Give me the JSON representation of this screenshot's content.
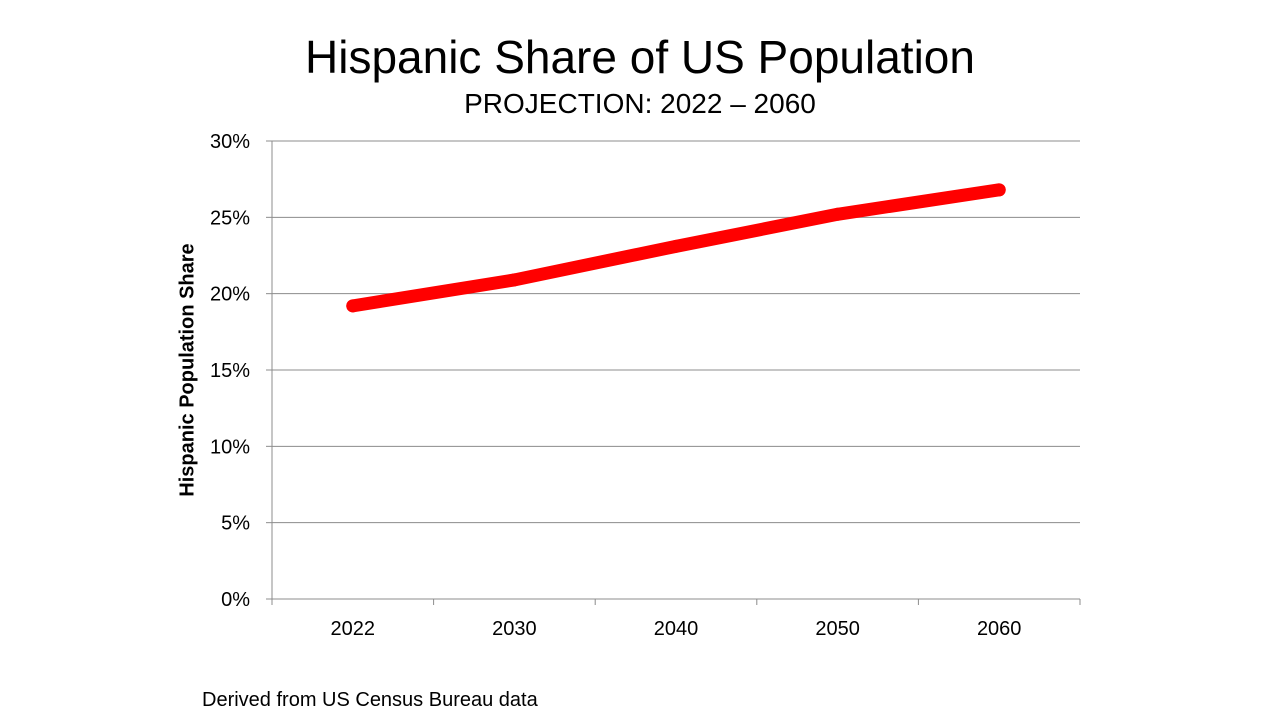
{
  "chart_data": {
    "type": "line",
    "title": "Hispanic Share of US Population",
    "subtitle": "PROJECTION: 2022 – 2060",
    "xlabel": "",
    "ylabel": "Hispanic Population Share",
    "categories": [
      "2022",
      "2030",
      "2040",
      "2050",
      "2060"
    ],
    "series": [
      {
        "name": "Hispanic Population Share",
        "values": [
          19.2,
          20.9,
          23.1,
          25.2,
          26.8
        ],
        "color": "#ff0000"
      }
    ],
    "y_ticks": [
      "0%",
      "5%",
      "10%",
      "15%",
      "20%",
      "25%",
      "30%"
    ],
    "ylim": [
      0,
      30
    ],
    "grid": true,
    "legend": "none",
    "source_note": "Derived from US Census Bureau data"
  }
}
